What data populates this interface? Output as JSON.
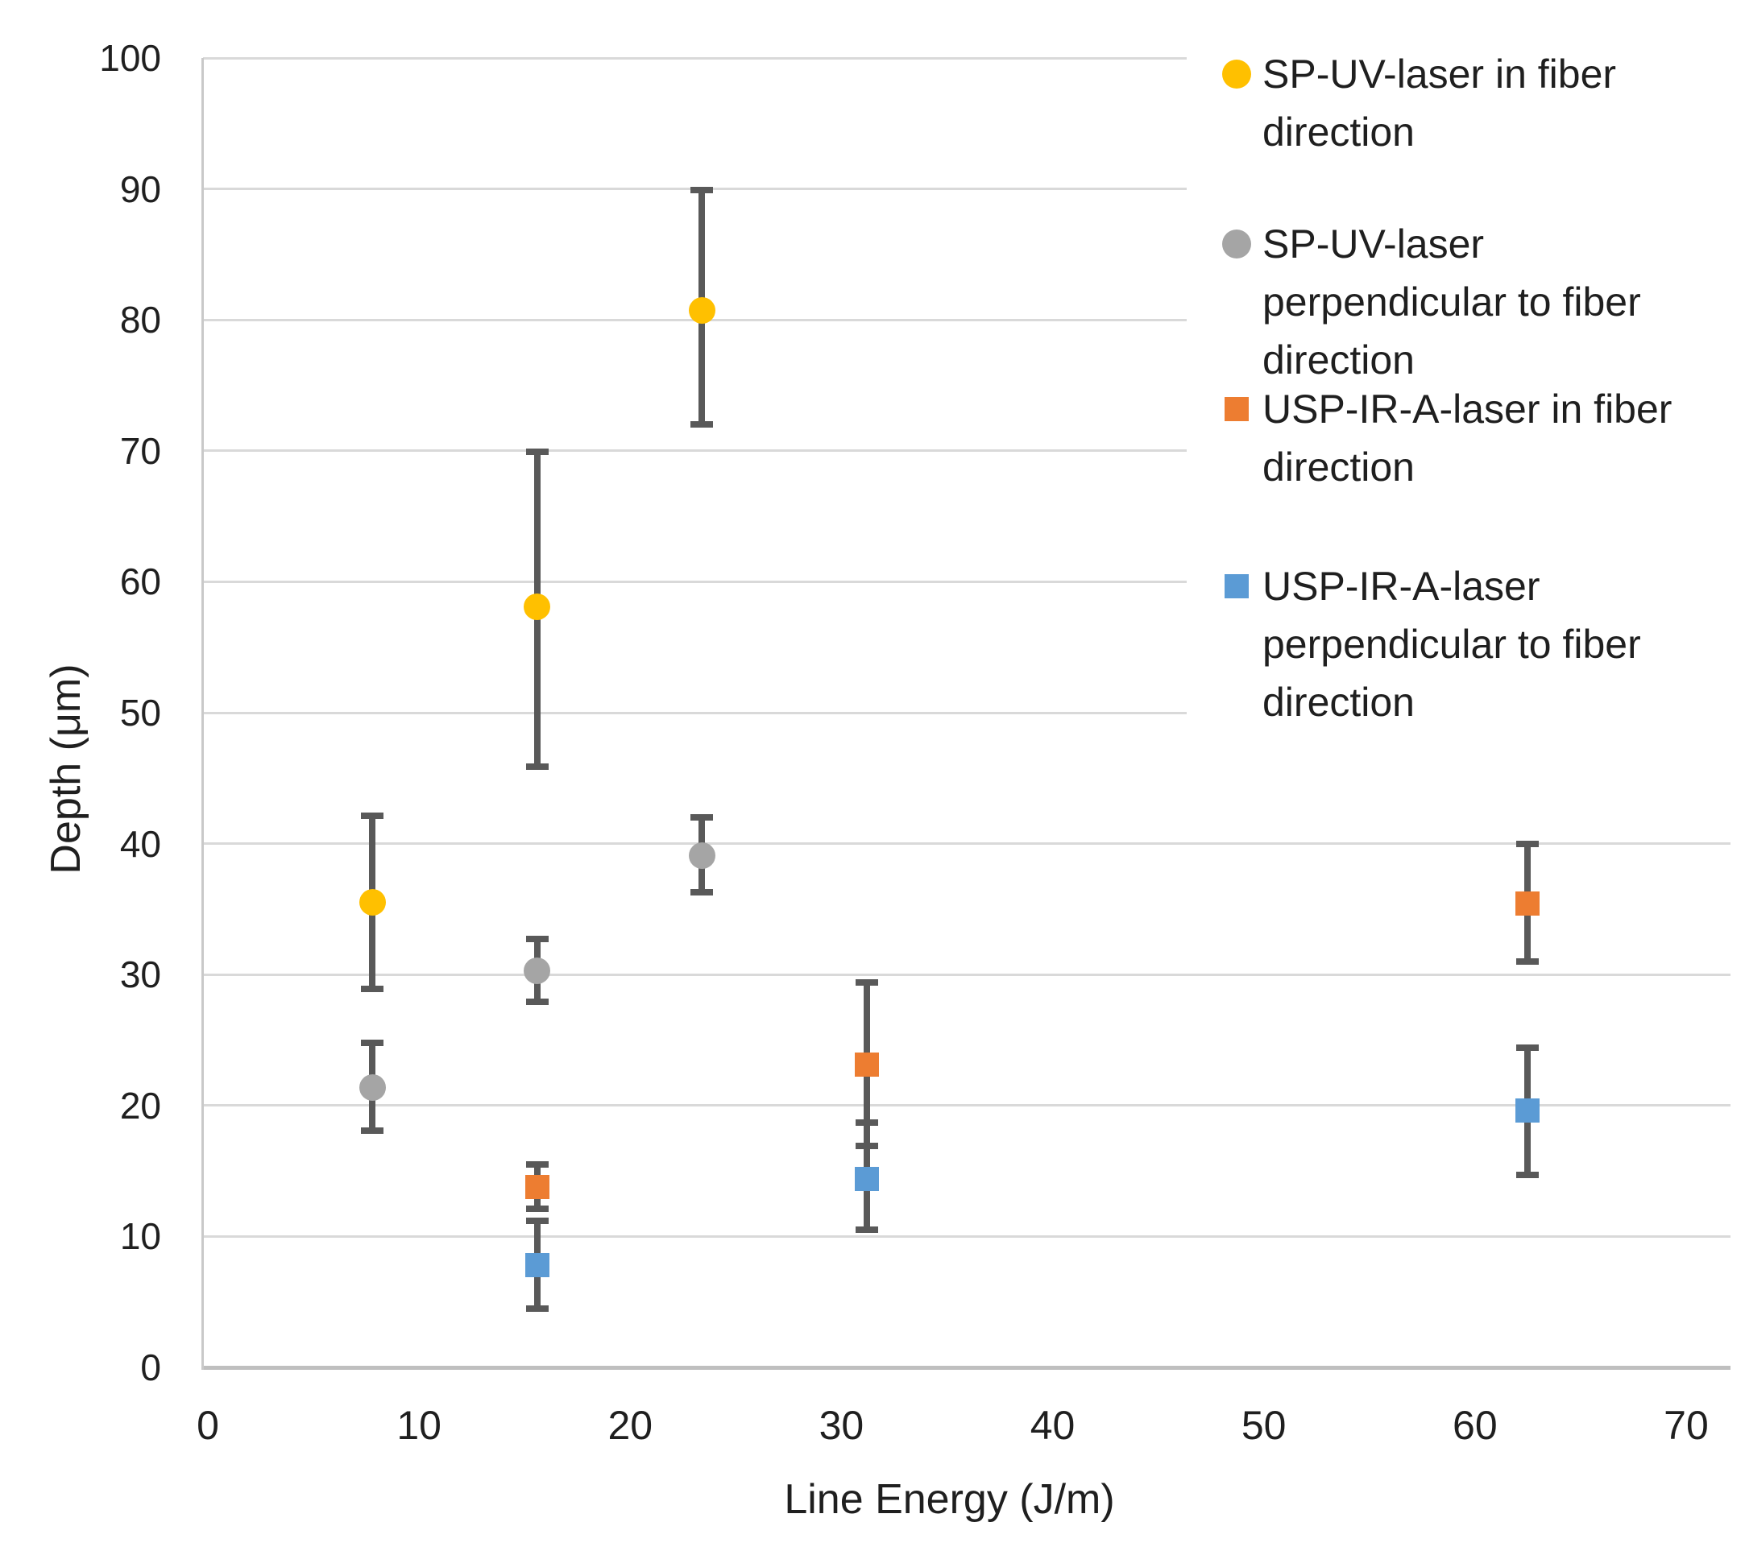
{
  "chart_data": {
    "type": "scatter",
    "title": "",
    "xlabel": "Line Energy (J/m)",
    "ylabel": "Depth (μm)",
    "xlim": [
      0,
      70
    ],
    "ylim": [
      0,
      100
    ],
    "x_ticks": [
      0,
      10,
      20,
      30,
      40,
      50,
      60,
      70
    ],
    "y_ticks": [
      0,
      10,
      20,
      30,
      40,
      50,
      60,
      70,
      80,
      90,
      100
    ],
    "grid": true,
    "legend_position": "right",
    "gridline_color": "#D9D9D9",
    "axis_line_color": "#BFBFBF",
    "error_bar_color": "#595959",
    "series": [
      {
        "name": "SP-UV-laser in fiber direction",
        "legend_lines": [
          "SP-UV-laser in fiber",
          "direction"
        ],
        "marker": "circle",
        "color": "#FFC000",
        "points": [
          {
            "x": 7.8,
            "y": 35.5,
            "err_lo": 28.9,
            "err_hi": 42.1
          },
          {
            "x": 15.6,
            "y": 58.1,
            "err_lo": 45.9,
            "err_hi": 69.9
          },
          {
            "x": 23.4,
            "y": 80.7,
            "err_lo": 72.0,
            "err_hi": 89.9
          }
        ]
      },
      {
        "name": "SP-UV-laser perpendicular to fiber direction",
        "legend_lines": [
          "SP-UV-laser",
          "perpendicular to fiber",
          "direction"
        ],
        "marker": "circle",
        "color": "#A5A5A5",
        "points": [
          {
            "x": 7.8,
            "y": 21.4,
            "err_lo": 18.1,
            "err_hi": 24.8
          },
          {
            "x": 15.6,
            "y": 30.3,
            "err_lo": 27.9,
            "err_hi": 32.7
          },
          {
            "x": 23.4,
            "y": 39.1,
            "err_lo": 36.3,
            "err_hi": 42.0
          }
        ]
      },
      {
        "name": "USP-IR-A-laser in fiber direction",
        "legend_lines": [
          "USP-IR-A-laser in fiber",
          "direction"
        ],
        "marker": "square",
        "color": "#ED7D31",
        "points": [
          {
            "x": 15.6,
            "y": 13.8,
            "err_lo": 12.1,
            "err_hi": 15.5
          },
          {
            "x": 31.2,
            "y": 23.1,
            "err_lo": 16.9,
            "err_hi": 29.4
          },
          {
            "x": 62.5,
            "y": 35.4,
            "err_lo": 31.0,
            "err_hi": 40.0
          }
        ]
      },
      {
        "name": "USP-IR-A-laser perpendicular to fiber direction",
        "legend_lines": [
          "USP-IR-A-laser",
          "perpendicular to fiber",
          "direction"
        ],
        "marker": "square",
        "color": "#5B9BD5",
        "points": [
          {
            "x": 15.6,
            "y": 7.8,
            "err_lo": 4.5,
            "err_hi": 11.2
          },
          {
            "x": 31.2,
            "y": 14.4,
            "err_lo": 10.5,
            "err_hi": 18.7
          },
          {
            "x": 62.5,
            "y": 19.6,
            "err_lo": 14.7,
            "err_hi": 24.4
          }
        ]
      }
    ]
  }
}
